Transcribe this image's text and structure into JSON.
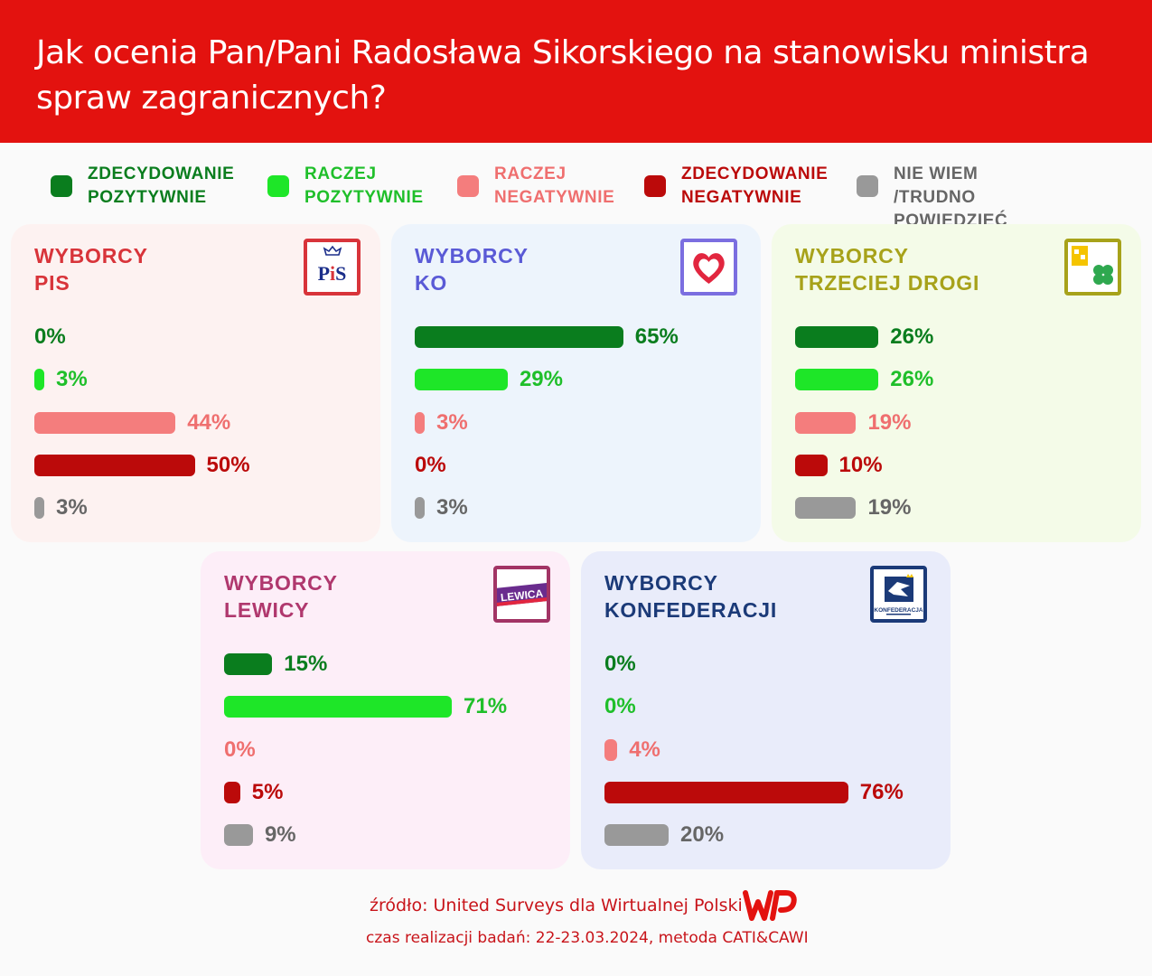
{
  "header": {
    "title": "Jak ocenia Pan/Pani Radosława Sikorskiego na stanowisku ministra spraw zagranicznych?"
  },
  "legend": [
    {
      "label": "ZDECYDOWANIE\nPOZYTYWNIE",
      "color": "#0a7d1e"
    },
    {
      "label": "RACZEJ\nPOZYTYWNIE",
      "color": "#1ee628"
    },
    {
      "label": "RACZEJ\nNEGATYWNIE",
      "color": "#f47d7d"
    },
    {
      "label": "ZDECYDOWANIE\nNEGATYWNIE",
      "color": "#bb0a0a"
    },
    {
      "label": "NIE WIEM\n/TRUDNO POWIEDZIEĆ",
      "color": "#999999"
    }
  ],
  "colors": {
    "definitely_positive": "#0a7d1e",
    "rather_positive": "#1ee628",
    "rather_negative": "#f47d7d",
    "definitely_negative": "#bb0a0a",
    "dont_know": "#999999",
    "header_bg": "#e3120f"
  },
  "chart_data": {
    "type": "bar",
    "orientation": "horizontal",
    "title": "Jak ocenia Pan/Pani Radosława Sikorskiego na stanowisku ministra spraw zagranicznych?",
    "categories": [
      "ZDECYDOWANIE POZYTYWNIE",
      "RACZEJ POZYTYWNIE",
      "RACZEJ NEGATYWNIE",
      "ZDECYDOWANIE NEGATYWNIE",
      "NIE WIEM /TRUDNO POWIEDZIEĆ"
    ],
    "unit": "%",
    "series": [
      {
        "name": "WYBORCY PIS",
        "values": [
          0,
          3,
          44,
          50,
          3
        ]
      },
      {
        "name": "WYBORCY KO",
        "values": [
          65,
          29,
          3,
          0,
          3
        ]
      },
      {
        "name": "WYBORCY TRZECIEJ DROGI",
        "values": [
          26,
          26,
          19,
          10,
          19
        ]
      },
      {
        "name": "WYBORCY LEWICY",
        "values": [
          15,
          71,
          0,
          5,
          9
        ]
      },
      {
        "name": "WYBORCY KONFEDERACJI",
        "values": [
          0,
          0,
          4,
          76,
          20
        ]
      }
    ]
  },
  "panels": [
    {
      "title": "WYBORCY\nPIS",
      "title_color": "#d8343a",
      "bg": "#fdf2f1",
      "logo": "pis-logo",
      "logo_text": "PiS",
      "logo_border": "#d8343a",
      "labels": [
        "0%",
        "3%",
        "44%",
        "50%",
        "3%"
      ]
    },
    {
      "title": "WYBORCY\nKO",
      "title_color": "#5a5ad6",
      "bg": "#edf4fc",
      "logo": "ko-heart-logo",
      "logo_border": "#7b6ee0",
      "labels": [
        "65%",
        "29%",
        "3%",
        "0%",
        "3%"
      ]
    },
    {
      "title": "WYBORCY\nTRZECIEJ DROGI",
      "title_color": "#a7a21a",
      "bg": "#f4fbe8",
      "logo": "trzecia-droga-logo",
      "logo_border": "#a7a21a",
      "labels": [
        "26%",
        "26%",
        "19%",
        "10%",
        "19%"
      ]
    },
    {
      "title": "WYBORCY\nLEWICY",
      "title_color": "#b0386e",
      "bg": "#fdeef8",
      "logo": "lewica-logo",
      "logo_text": "LEWICA",
      "logo_border": "#a23465",
      "labels": [
        "15%",
        "71%",
        "0%",
        "5%",
        "9%"
      ]
    },
    {
      "title": "WYBORCY\nKONFEDERACJI",
      "title_color": "#1b3a78",
      "bg": "#e9ecfa",
      "logo": "konfederacja-logo",
      "logo_text": "KONFEDERACJA",
      "logo_border": "#1b3a78",
      "labels": [
        "0%",
        "0%",
        "4%",
        "76%",
        "20%"
      ]
    }
  ],
  "footer": {
    "source": "źródło: United Surveys dla Wirtualnej Polski",
    "date": "czas realizacji badań: 22-23.03.2024, metoda CATI&CAWI",
    "logo_text": "WP"
  }
}
